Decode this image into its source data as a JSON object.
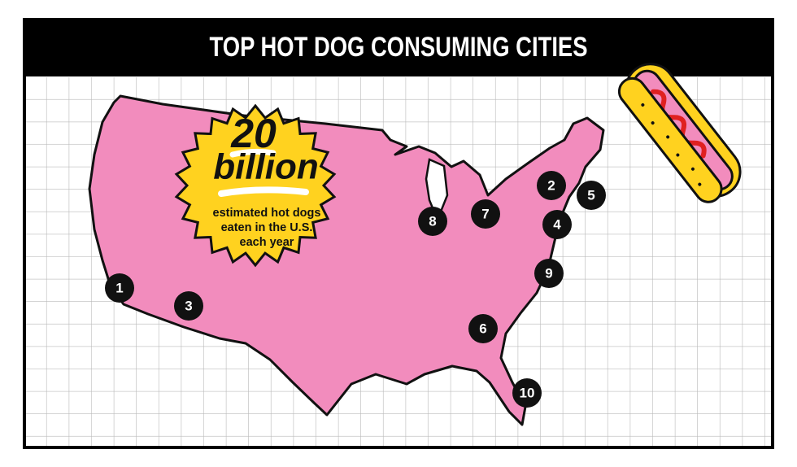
{
  "header": {
    "title": "TOP HOT DOG CONSUMING CITIES"
  },
  "badge": {
    "number": "20",
    "unit": "billion",
    "caption": [
      "estimated hot dogs",
      "eaten in the U.S.",
      "each year"
    ]
  },
  "markers": [
    {
      "label": "1"
    },
    {
      "label": "2"
    },
    {
      "label": "3"
    },
    {
      "label": "4"
    },
    {
      "label": "5"
    },
    {
      "label": "6"
    },
    {
      "label": "7"
    },
    {
      "label": "8"
    },
    {
      "label": "9"
    },
    {
      "label": "10"
    }
  ]
}
